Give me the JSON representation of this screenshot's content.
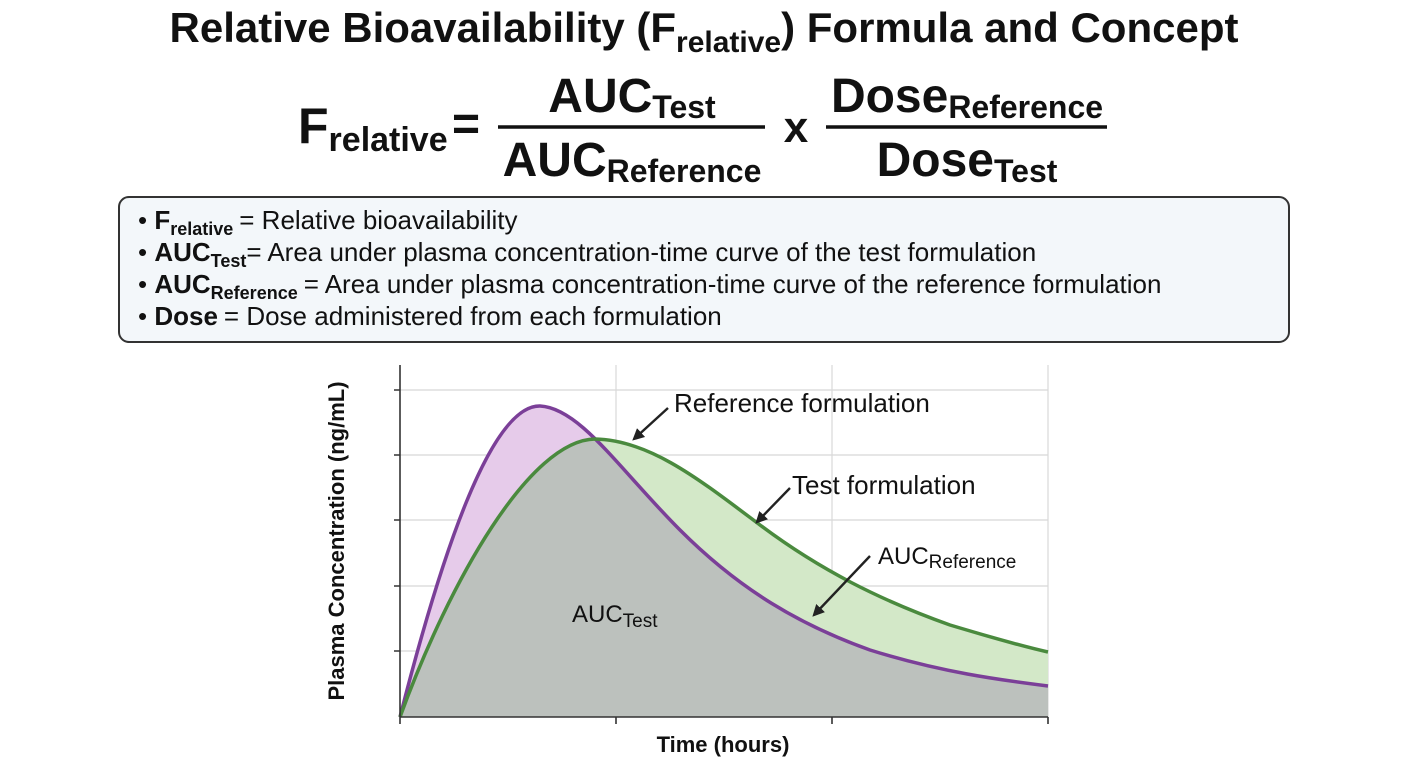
{
  "title": {
    "before": "Relative Bioavailability (F",
    "sub": "relative",
    "after": ") Formula and Concept"
  },
  "formula": {
    "lhs": {
      "base": "F",
      "sub": "relative"
    },
    "equals": "=",
    "fraction_1": {
      "numerator": {
        "base": "AUC",
        "sub": "Test"
      },
      "denominator": {
        "base": "AUC",
        "sub": "Reference"
      }
    },
    "times": "x",
    "fraction_2": {
      "numerator": {
        "base": "Dose",
        "sub": "Reference"
      },
      "denominator": {
        "base": "Dose",
        "sub": "Test"
      }
    }
  },
  "definitions": [
    {
      "term": "F",
      "sub": "relative",
      "text": "= Relative bioavailability"
    },
    {
      "term": "AUC",
      "sub": "Test",
      "text": "= Area under plasma concentration-time curve of the test formulation"
    },
    {
      "term": "AUC",
      "sub": "Reference",
      "text": "= Area under plasma concentration-time curve of the reference formulation"
    },
    {
      "term": "Dose",
      "text": "= Dose administered from each formulation"
    }
  ],
  "plot": {
    "y_label": "Plasma Concentration (ng/mL)",
    "x_label": "Time (hours)",
    "annotations": {
      "reference": "Reference formulation",
      "test": "Test formulation",
      "auc_reference": {
        "base": "AUC",
        "sub": "Reference"
      },
      "auc_test": {
        "base": "AUC",
        "sub": "Test"
      }
    }
  }
}
